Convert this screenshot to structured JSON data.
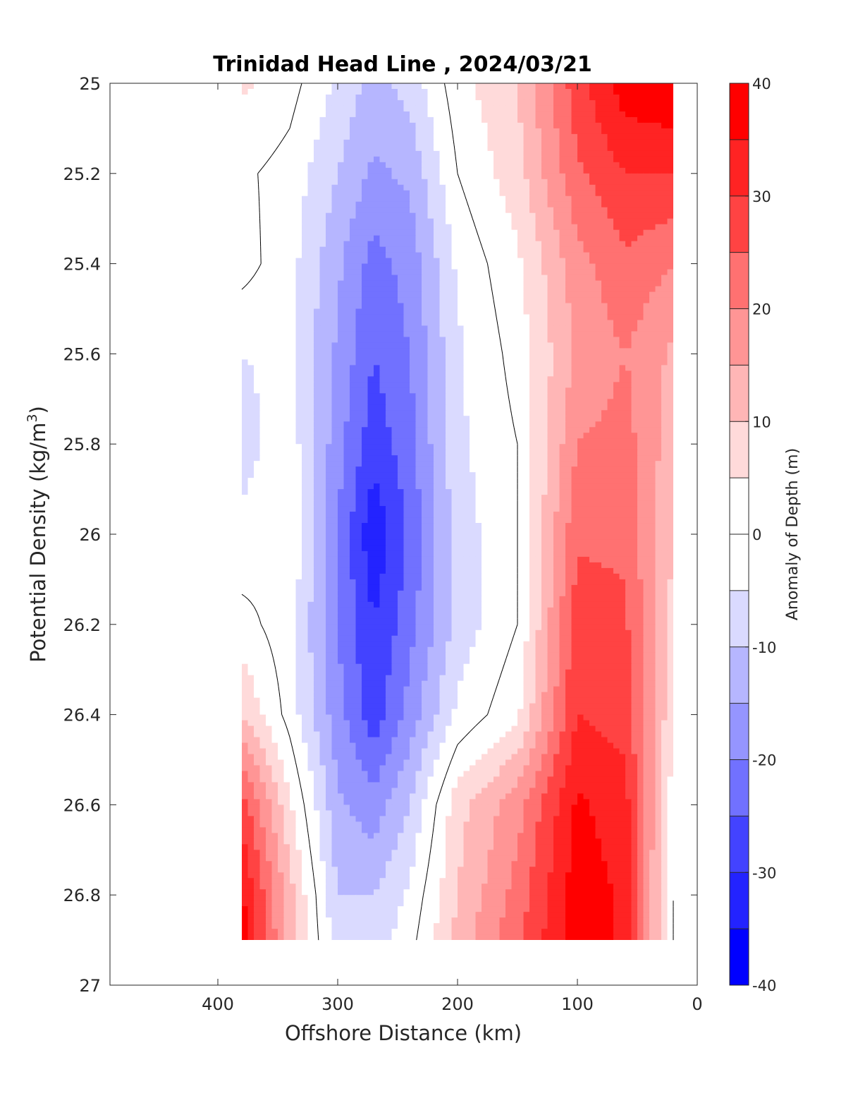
{
  "chart_data": {
    "type": "heatmap",
    "subtype": "filled-contour",
    "title": "Trinidad Head Line , 2024/03/21",
    "xlabel": "Offshore Distance (km)",
    "ylabel_main": "Potential Density (kg/m",
    "ylabel_sup": "3",
    "ylabel_tail": ")",
    "xlim": [
      490,
      0
    ],
    "x_reversed": true,
    "ylim": [
      25,
      27
    ],
    "y_reversed": true,
    "xticks": [
      "400",
      "300",
      "200",
      "100",
      "0"
    ],
    "yticks": [
      "25",
      "25.2",
      "25.4",
      "25.6",
      "25.8",
      "26",
      "26.2",
      "26.4",
      "26.6",
      "26.8",
      "27"
    ],
    "data_extent": {
      "x": [
        380,
        20
      ],
      "y": [
        25.0,
        26.9
      ]
    },
    "x": [
      380,
      340,
      300,
      270,
      240,
      200,
      150,
      100,
      60,
      20
    ],
    "y": [
      25.0,
      25.2,
      25.4,
      25.6,
      25.8,
      26.0,
      26.2,
      26.4,
      26.6,
      26.8,
      26.9
    ],
    "z": [
      [
        6,
        2,
        -6,
        -12,
        -8,
        3,
        10,
        28,
        38,
        40
      ],
      [
        1,
        -2,
        -10,
        -16,
        -14,
        0,
        8,
        24,
        30,
        30
      ],
      [
        2,
        -3,
        -14,
        -22,
        -18,
        -4,
        4,
        18,
        24,
        20
      ],
      [
        -5,
        -4,
        -16,
        -25,
        -20,
        -6,
        2,
        16,
        20,
        14
      ],
      [
        -7,
        -2,
        -18,
        -28,
        -22,
        -6,
        0,
        20,
        22,
        12
      ],
      [
        -4,
        0,
        -20,
        -34,
        -24,
        -8,
        0,
        24,
        24,
        10
      ],
      [
        2,
        -3,
        -20,
        -30,
        -22,
        -8,
        0,
        28,
        26,
        8
      ],
      [
        10,
        -2,
        -18,
        -28,
        -18,
        -4,
        4,
        30,
        28,
        6
      ],
      [
        28,
        6,
        -14,
        -18,
        -10,
        8,
        18,
        36,
        32,
        2
      ],
      [
        36,
        12,
        -10,
        -10,
        -4,
        10,
        22,
        38,
        34,
        0
      ],
      [
        38,
        12,
        -8,
        -8,
        -2,
        12,
        24,
        38,
        34,
        0
      ]
    ],
    "contour_lines": [
      0
    ],
    "colorbar": {
      "label": "Anomaly of Depth (m)",
      "min": -40,
      "max": 40,
      "step": 5,
      "ticks": [
        "40",
        "30",
        "20",
        "10",
        "0",
        "-10",
        "-20",
        "-30",
        "-40"
      ],
      "ticks_values": [
        40,
        30,
        20,
        10,
        0,
        -10,
        -20,
        -30,
        -40
      ],
      "levels": [
        -40,
        -35,
        -30,
        -25,
        -20,
        -15,
        -10,
        -5,
        5,
        10,
        15,
        20,
        25,
        30,
        35,
        40
      ],
      "colors": {
        "-40": "#0000ff",
        "-35": "#2323ff",
        "-30": "#4343ff",
        "-25": "#7171ff",
        "-20": "#9595ff",
        "-15": "#b6b6ff",
        "-10": "#dadaff",
        "0": "#ffffff",
        "10": "#ffdada",
        "15": "#ffb6b6",
        "20": "#ff9595",
        "25": "#ff7171",
        "30": "#ff4343",
        "35": "#ff2323",
        "40": "#ff0000"
      }
    },
    "grid": false,
    "legend": "none"
  }
}
